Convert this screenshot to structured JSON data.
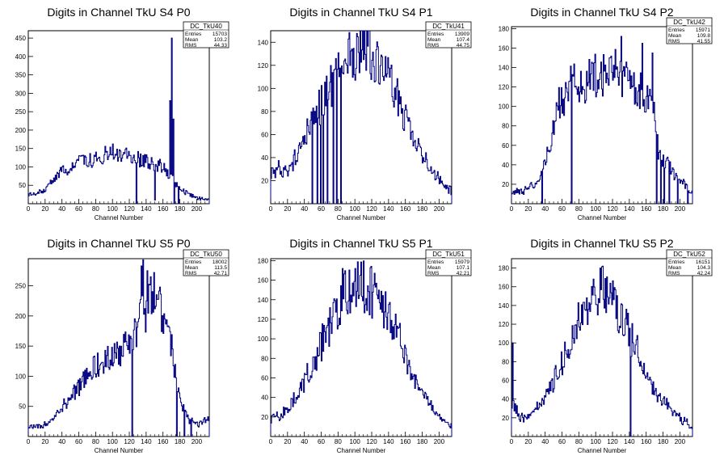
{
  "chart_data": [
    {
      "type": "histogram",
      "title": "Digits in Channel TkU S4 P0",
      "xlabel": "Channel Number",
      "ylabel": "",
      "xlim": [
        0,
        215
      ],
      "ylim": [
        0,
        470
      ],
      "xticks": [
        0,
        20,
        40,
        60,
        80,
        100,
        120,
        140,
        160,
        180,
        200
      ],
      "yticks": [
        50,
        100,
        150,
        200,
        250,
        300,
        350,
        400,
        450
      ],
      "stats": {
        "name": "DC_TkU40",
        "entries": "15703",
        "mean": "103.2",
        "rms": "44.33"
      },
      "profile": [
        [
          0,
          25
        ],
        [
          10,
          25
        ],
        [
          20,
          40
        ],
        [
          40,
          90
        ],
        [
          60,
          110
        ],
        [
          80,
          125
        ],
        [
          100,
          140
        ],
        [
          120,
          130
        ],
        [
          140,
          115
        ],
        [
          160,
          100
        ],
        [
          180,
          40
        ],
        [
          200,
          15
        ],
        [
          215,
          10
        ]
      ],
      "spikes": [
        [
          167,
          70
        ],
        [
          168,
          280
        ],
        [
          170,
          450
        ],
        [
          172,
          230
        ]
      ],
      "dips": [
        [
          128,
          0
        ],
        [
          150,
          10
        ],
        [
          173,
          0
        ],
        [
          178,
          0
        ]
      ]
    },
    {
      "type": "histogram",
      "title": "Digits in Channel TkU S4 P1",
      "xlabel": "Channel Number",
      "ylabel": "",
      "xlim": [
        0,
        215
      ],
      "ylim": [
        0,
        150
      ],
      "xticks": [
        0,
        20,
        40,
        60,
        80,
        100,
        120,
        140,
        160,
        180,
        200
      ],
      "yticks": [
        20,
        40,
        60,
        80,
        100,
        120,
        140
      ],
      "stats": {
        "name": "DC_TkU41",
        "entries": "13909",
        "mean": "107.4",
        "rms": "44.75"
      },
      "profile": [
        [
          0,
          25
        ],
        [
          10,
          30
        ],
        [
          20,
          30
        ],
        [
          30,
          40
        ],
        [
          40,
          60
        ],
        [
          50,
          75
        ],
        [
          60,
          85
        ],
        [
          70,
          100
        ],
        [
          80,
          115
        ],
        [
          90,
          125
        ],
        [
          100,
          130
        ],
        [
          110,
          138
        ],
        [
          120,
          130
        ],
        [
          130,
          120
        ],
        [
          140,
          105
        ],
        [
          150,
          95
        ],
        [
          160,
          75
        ],
        [
          170,
          55
        ],
        [
          180,
          45
        ],
        [
          190,
          30
        ],
        [
          200,
          20
        ],
        [
          215,
          10
        ]
      ],
      "spikes": [
        [
          117,
          150
        ]
      ],
      "dips": [
        [
          49,
          0
        ],
        [
          55,
          0
        ],
        [
          59,
          0
        ],
        [
          62,
          0
        ],
        [
          67,
          0
        ],
        [
          74,
          0
        ],
        [
          78,
          0
        ],
        [
          83,
          0
        ]
      ]
    },
    {
      "type": "histogram",
      "title": "Digits in Channel TkU S4 P2",
      "xlabel": "Channel Number",
      "ylabel": "",
      "xlim": [
        0,
        215
      ],
      "ylim": [
        0,
        182
      ],
      "xticks": [
        0,
        20,
        40,
        60,
        80,
        100,
        120,
        140,
        160,
        180,
        200
      ],
      "yticks": [
        20,
        40,
        60,
        80,
        100,
        120,
        140,
        160,
        180
      ],
      "stats": {
        "name": "DC_TkU42",
        "entries": "15971",
        "mean": "109.8",
        "rms": "41.55"
      },
      "profile": [
        [
          0,
          10
        ],
        [
          20,
          15
        ],
        [
          30,
          20
        ],
        [
          40,
          40
        ],
        [
          50,
          80
        ],
        [
          60,
          110
        ],
        [
          70,
          120
        ],
        [
          80,
          125
        ],
        [
          90,
          125
        ],
        [
          100,
          130
        ],
        [
          110,
          135
        ],
        [
          120,
          140
        ],
        [
          130,
          130
        ],
        [
          140,
          125
        ],
        [
          150,
          115
        ],
        [
          160,
          110
        ],
        [
          170,
          100
        ],
        [
          175,
          50
        ],
        [
          180,
          45
        ],
        [
          190,
          35
        ],
        [
          200,
          25
        ],
        [
          215,
          10
        ]
      ],
      "spikes": [
        [
          130,
          172
        ],
        [
          155,
          165
        ],
        [
          167,
          155
        ]
      ],
      "dips": [
        [
          36,
          0
        ],
        [
          71,
          0
        ],
        [
          172,
          0
        ],
        [
          177,
          0
        ],
        [
          181,
          0
        ],
        [
          187,
          0
        ],
        [
          197,
          0
        ],
        [
          209,
          0
        ]
      ]
    },
    {
      "type": "histogram",
      "title": "Digits in Channel TkU S5 P0",
      "xlabel": "Channel Number",
      "ylabel": "",
      "xlim": [
        0,
        215
      ],
      "ylim": [
        0,
        295
      ],
      "xticks": [
        0,
        20,
        40,
        60,
        80,
        100,
        120,
        140,
        160,
        180,
        200
      ],
      "yticks": [
        50,
        100,
        150,
        200,
        250
      ],
      "stats": {
        "name": "DC_TkU50",
        "entries": "18002",
        "mean": "113.5",
        "rms": "42.71"
      },
      "profile": [
        [
          0,
          15
        ],
        [
          20,
          20
        ],
        [
          30,
          30
        ],
        [
          40,
          50
        ],
        [
          50,
          65
        ],
        [
          60,
          85
        ],
        [
          70,
          100
        ],
        [
          80,
          115
        ],
        [
          90,
          125
        ],
        [
          100,
          135
        ],
        [
          110,
          140
        ],
        [
          120,
          160
        ],
        [
          130,
          170
        ],
        [
          135,
          280
        ],
        [
          140,
          200
        ],
        [
          150,
          250
        ],
        [
          160,
          200
        ],
        [
          170,
          150
        ],
        [
          175,
          100
        ],
        [
          180,
          60
        ],
        [
          190,
          30
        ],
        [
          200,
          20
        ],
        [
          215,
          30
        ]
      ],
      "spikes": [
        [
          134,
          283
        ],
        [
          141,
          275
        ],
        [
          145,
          265
        ]
      ],
      "dips": [
        [
          123,
          0
        ],
        [
          176,
          0
        ],
        [
          185,
          0
        ],
        [
          193,
          0
        ]
      ]
    },
    {
      "type": "histogram",
      "title": "Digits in Channel TkU S5 P1",
      "xlabel": "Channel Number",
      "ylabel": "",
      "xlim": [
        0,
        215
      ],
      "ylim": [
        0,
        182
      ],
      "xticks": [
        0,
        20,
        40,
        60,
        80,
        100,
        120,
        140,
        160,
        180,
        200
      ],
      "yticks": [
        20,
        40,
        60,
        80,
        100,
        120,
        140,
        160,
        180
      ],
      "stats": {
        "name": "DC_TkU51",
        "entries": "15979",
        "mean": "107.1",
        "rms": "42.21"
      },
      "profile": [
        [
          0,
          20
        ],
        [
          10,
          20
        ],
        [
          20,
          30
        ],
        [
          30,
          40
        ],
        [
          40,
          55
        ],
        [
          50,
          75
        ],
        [
          60,
          95
        ],
        [
          70,
          115
        ],
        [
          80,
          130
        ],
        [
          90,
          145
        ],
        [
          100,
          150
        ],
        [
          110,
          155
        ],
        [
          120,
          150
        ],
        [
          130,
          140
        ],
        [
          140,
          125
        ],
        [
          150,
          105
        ],
        [
          160,
          85
        ],
        [
          170,
          60
        ],
        [
          180,
          45
        ],
        [
          190,
          30
        ],
        [
          200,
          20
        ],
        [
          215,
          10
        ]
      ],
      "spikes": [
        [
          85,
          172
        ],
        [
          100,
          172
        ],
        [
          106,
          165
        ]
      ],
      "dips": []
    },
    {
      "type": "histogram",
      "title": "Digits in Channel TkU S5 P2",
      "xlabel": "Channel Number",
      "ylabel": "",
      "xlim": [
        0,
        215
      ],
      "ylim": [
        0,
        190
      ],
      "xticks": [
        0,
        20,
        40,
        60,
        80,
        100,
        120,
        140,
        160,
        180,
        200
      ],
      "yticks": [
        20,
        40,
        60,
        80,
        100,
        120,
        140,
        160,
        180
      ],
      "stats": {
        "name": "DC_TkU52",
        "entries": "16151",
        "mean": "104.3",
        "rms": "42.24"
      },
      "profile": [
        [
          0,
          40
        ],
        [
          5,
          30
        ],
        [
          10,
          20
        ],
        [
          20,
          20
        ],
        [
          30,
          30
        ],
        [
          40,
          40
        ],
        [
          50,
          60
        ],
        [
          60,
          80
        ],
        [
          70,
          100
        ],
        [
          80,
          125
        ],
        [
          90,
          140
        ],
        [
          100,
          155
        ],
        [
          110,
          160
        ],
        [
          120,
          150
        ],
        [
          130,
          125
        ],
        [
          140,
          110
        ],
        [
          150,
          90
        ],
        [
          160,
          70
        ],
        [
          170,
          50
        ],
        [
          180,
          40
        ],
        [
          190,
          30
        ],
        [
          200,
          20
        ],
        [
          215,
          10
        ]
      ],
      "spikes": [
        [
          1,
          100
        ],
        [
          105,
          180
        ],
        [
          108,
          182
        ]
      ],
      "dips": [
        [
          141,
          0
        ]
      ]
    }
  ]
}
